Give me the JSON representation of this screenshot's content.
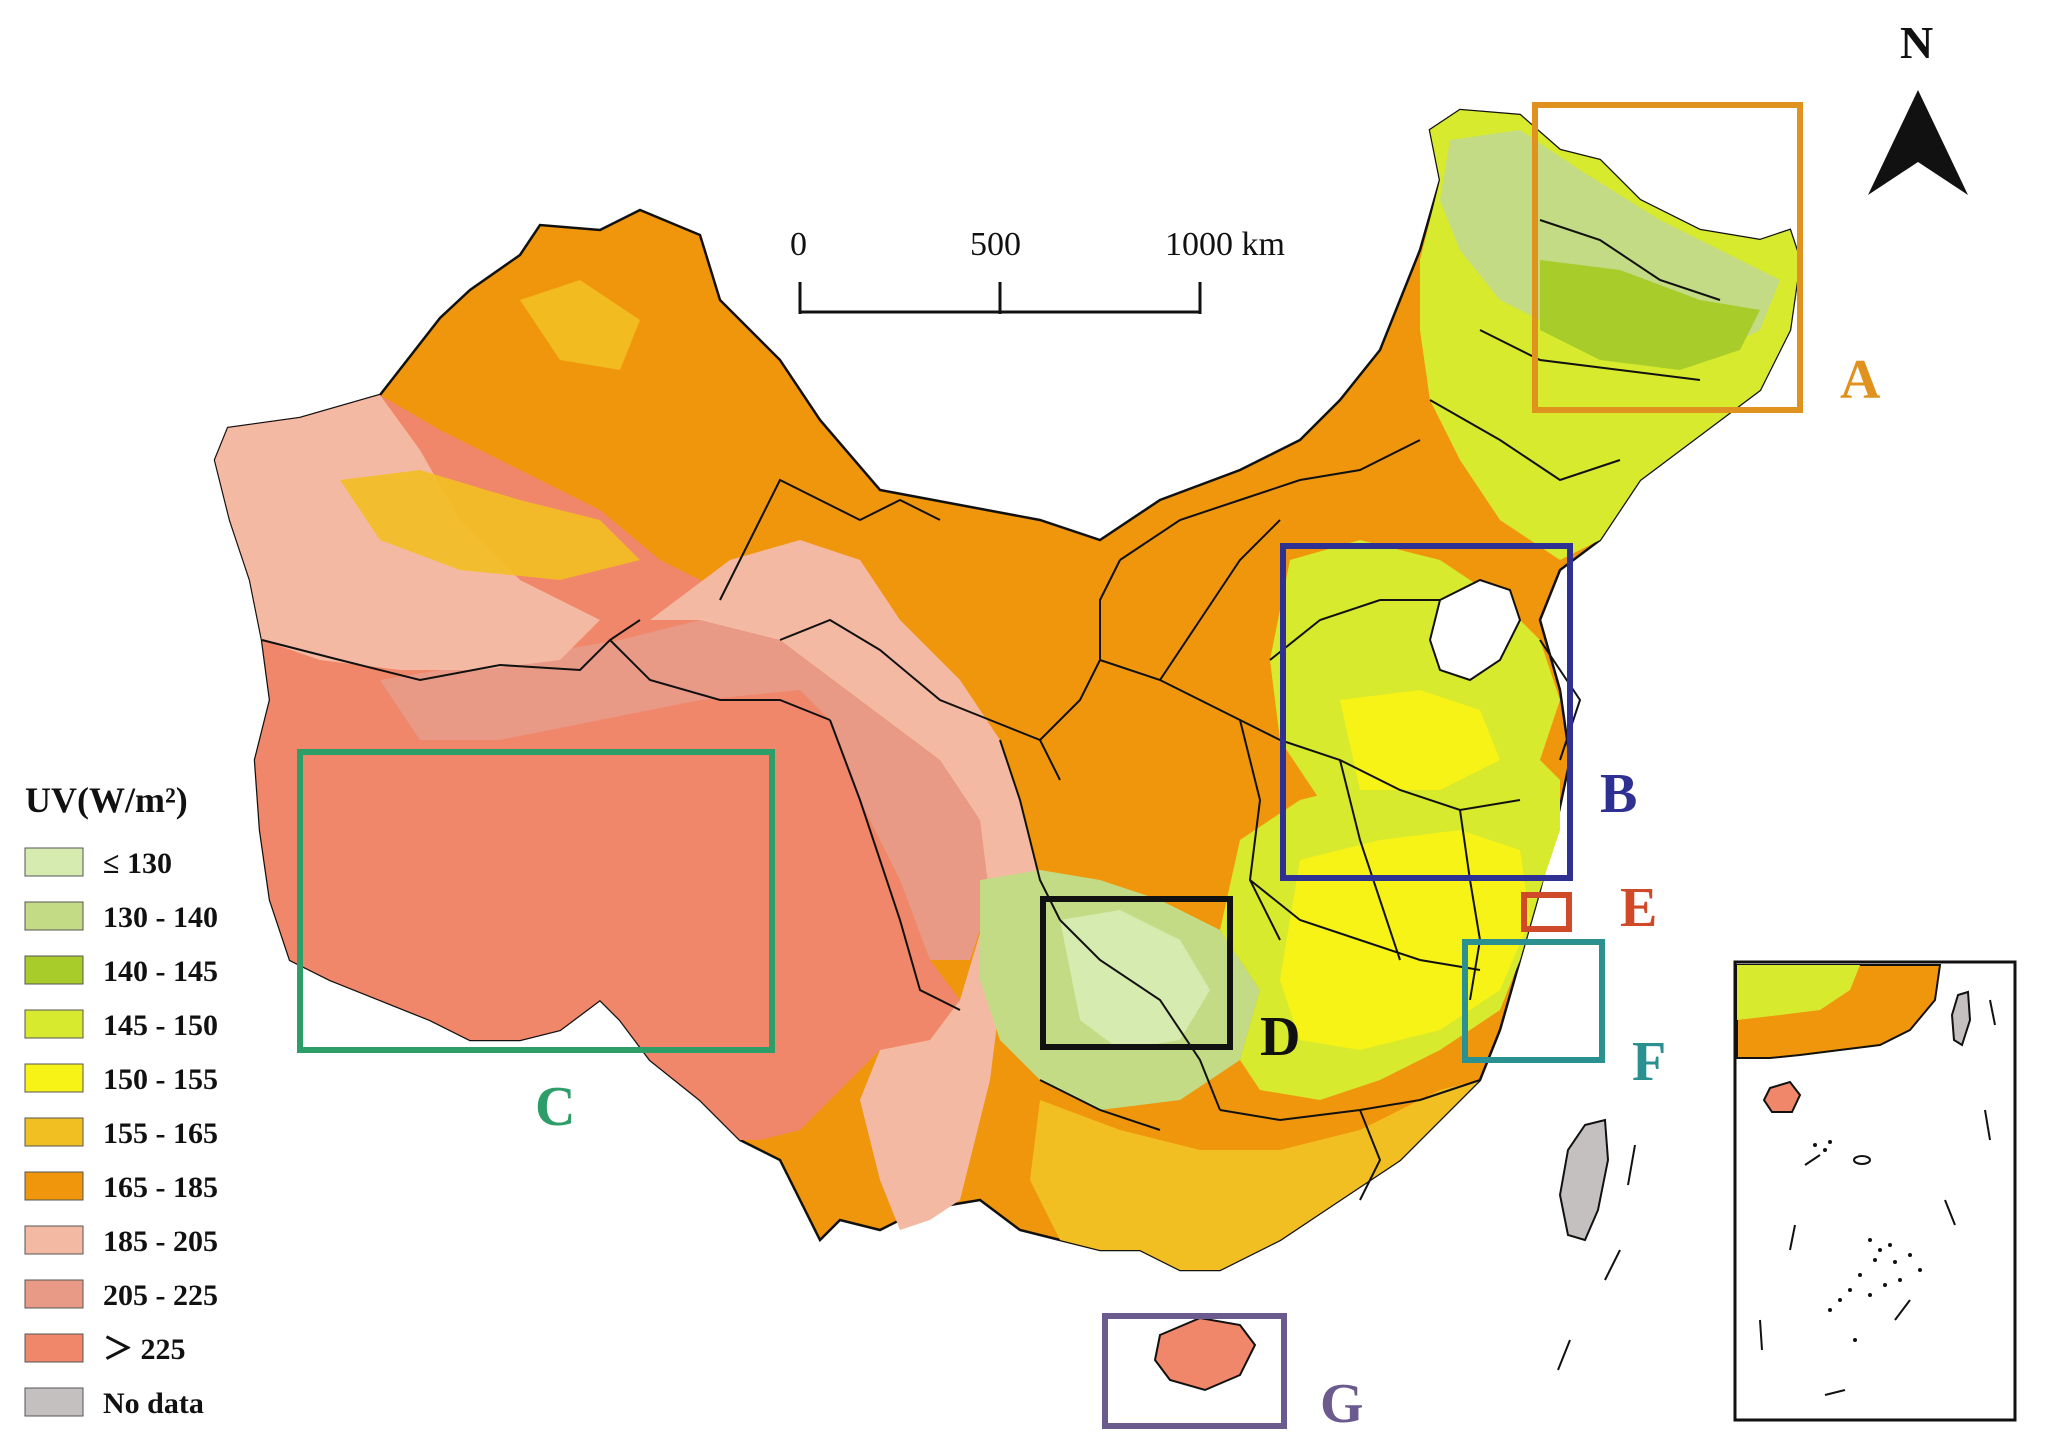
{
  "north_arrow": {
    "label": "N"
  },
  "scale_bar": {
    "labels": [
      "0",
      "500",
      "1000 km"
    ]
  },
  "legend": {
    "title": "UV(W/m²)",
    "classes": [
      {
        "label": "≤ 130",
        "color": "#d6ebb0"
      },
      {
        "label": "130 - 140",
        "color": "#c2db84"
      },
      {
        "label": "140 - 145",
        "color": "#a8cc2a"
      },
      {
        "label": "145 - 150",
        "color": "#d8ea2e"
      },
      {
        "label": "150 - 155",
        "color": "#f7f316"
      },
      {
        "label": "155 - 165",
        "color": "#f2bf22"
      },
      {
        "label": "165 - 185",
        "color": "#f0960c"
      },
      {
        "label": "185 - 205",
        "color": "#f4b9a2"
      },
      {
        "label": "205 - 225",
        "color": "#e99a86"
      },
      {
        "label": "＞ 225",
        "color": "#f0866a"
      },
      {
        "label": "No data",
        "color": "#c4c0c0"
      }
    ]
  },
  "study_areas": [
    {
      "label": "A",
      "color": "#e0921e"
    },
    {
      "label": "B",
      "color": "#2e3192"
    },
    {
      "label": "C",
      "color": "#2e9e68"
    },
    {
      "label": "D",
      "color": "#111111"
    },
    {
      "label": "E",
      "color": "#d04a2a"
    },
    {
      "label": "F",
      "color": "#2a9090"
    },
    {
      "label": "G",
      "color": "#6b5a8e"
    }
  ]
}
